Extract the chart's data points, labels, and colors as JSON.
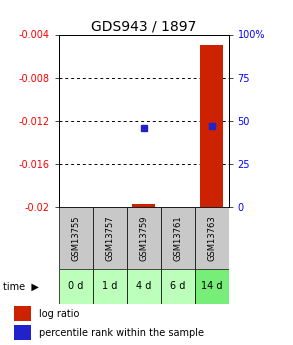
{
  "title": "GDS943 / 1897",
  "samples": [
    "GSM13755",
    "GSM13757",
    "GSM13759",
    "GSM13761",
    "GSM13763"
  ],
  "time_labels": [
    "0 d",
    "1 d",
    "4 d",
    "6 d",
    "14 d"
  ],
  "log_ratio": [
    null,
    null,
    -0.0197,
    null,
    -0.005
  ],
  "percentile_rank": [
    null,
    null,
    46,
    null,
    47
  ],
  "left_ylim": [
    -0.02,
    -0.004
  ],
  "right_ylim": [
    0,
    100
  ],
  "left_yticks": [
    -0.02,
    -0.016,
    -0.012,
    -0.008,
    -0.004
  ],
  "right_yticks": [
    0,
    25,
    50,
    75,
    100
  ],
  "left_ytick_labels": [
    "-0.02",
    "-0.016",
    "-0.012",
    "-0.008",
    "-0.004"
  ],
  "right_ytick_labels": [
    "0",
    "25",
    "50",
    "75",
    "100%"
  ],
  "hlines": [
    -0.008,
    -0.012,
    -0.016
  ],
  "bar_color": "#cc2200",
  "dot_color": "#2222cc",
  "sample_bg_color": "#c8c8c8",
  "time_bg_colors": [
    "#bbffbb",
    "#bbffbb",
    "#bbffbb",
    "#bbffbb",
    "#77ee77"
  ],
  "legend_bar_label": "log ratio",
  "legend_dot_label": "percentile rank within the sample",
  "time_label": "time",
  "title_fontsize": 10,
  "tick_fontsize": 7,
  "sample_fontsize": 6,
  "time_fontsize": 7,
  "legend_fontsize": 7
}
